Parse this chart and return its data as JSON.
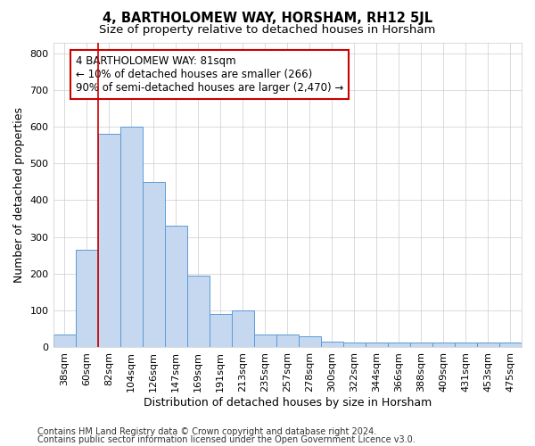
{
  "title": "4, BARTHOLOMEW WAY, HORSHAM, RH12 5JL",
  "subtitle": "Size of property relative to detached houses in Horsham",
  "xlabel": "Distribution of detached houses by size in Horsham",
  "ylabel": "Number of detached properties",
  "categories": [
    "38sqm",
    "60sqm",
    "82sqm",
    "104sqm",
    "126sqm",
    "147sqm",
    "169sqm",
    "191sqm",
    "213sqm",
    "235sqm",
    "257sqm",
    "278sqm",
    "300sqm",
    "322sqm",
    "344sqm",
    "366sqm",
    "388sqm",
    "409sqm",
    "431sqm",
    "453sqm",
    "475sqm"
  ],
  "values": [
    35,
    265,
    580,
    600,
    450,
    330,
    195,
    90,
    100,
    35,
    35,
    30,
    15,
    12,
    12,
    12,
    12,
    12,
    12,
    12,
    12
  ],
  "bar_color": "#c5d8f0",
  "bar_edge_color": "#5b9bd5",
  "marker_index": 2,
  "marker_color": "#cc0000",
  "ylim": [
    0,
    830
  ],
  "yticks": [
    0,
    100,
    200,
    300,
    400,
    500,
    600,
    700,
    800
  ],
  "annotation_text": "4 BARTHOLOMEW WAY: 81sqm\n← 10% of detached houses are smaller (266)\n90% of semi-detached houses are larger (2,470) →",
  "annotation_box_color": "#ffffff",
  "annotation_box_edge": "#cc0000",
  "footnote1": "Contains HM Land Registry data © Crown copyright and database right 2024.",
  "footnote2": "Contains public sector information licensed under the Open Government Licence v3.0.",
  "background_color": "#ffffff",
  "grid_color": "#cccccc",
  "title_fontsize": 10.5,
  "subtitle_fontsize": 9.5,
  "tick_fontsize": 8,
  "label_fontsize": 9,
  "annotation_fontsize": 8.5,
  "footnote_fontsize": 7
}
